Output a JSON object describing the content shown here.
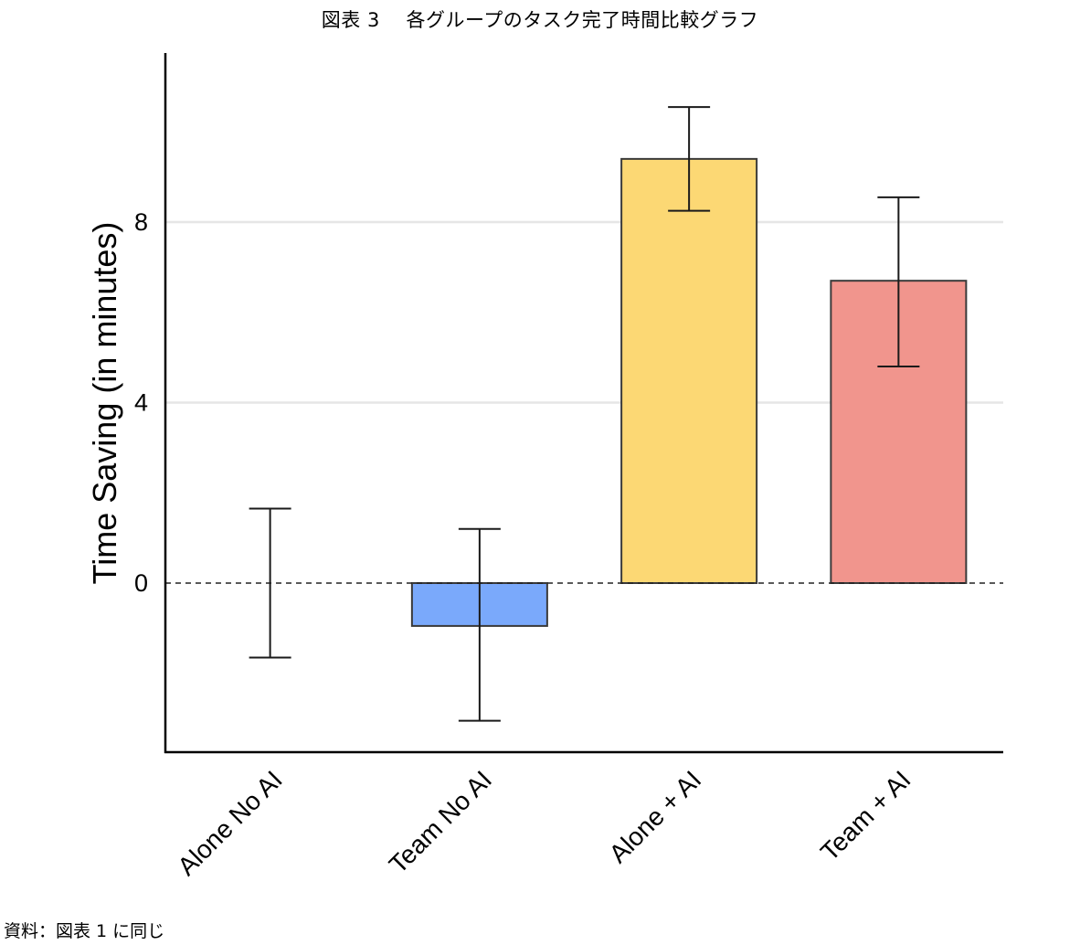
{
  "figure_title": "図表 3　 各グループのタスク完了時間比較グラフ",
  "source_note": "資料：図表 1 に同じ",
  "chart_data": {
    "type": "bar",
    "title": "図表 3　 各グループのタスク完了時間比較グラフ",
    "xlabel": "",
    "ylabel": "Time Saving (in minutes)",
    "categories": [
      "Alone No AI",
      "Team No AI",
      "Alone + AI",
      "Team + AI"
    ],
    "values": [
      0,
      -0.95,
      9.4,
      6.7
    ],
    "error_low": [
      -1.65,
      -3.05,
      8.25,
      4.8
    ],
    "error_high": [
      1.65,
      1.2,
      10.55,
      8.55
    ],
    "colors": [
      "#ffffff",
      "#7aa9fb",
      "#fcd874",
      "#f1958d"
    ],
    "yticks": [
      0,
      4,
      8
    ],
    "ylim": [
      -3.75,
      11.8
    ],
    "reference_line": 0,
    "grid": "horizontal"
  }
}
